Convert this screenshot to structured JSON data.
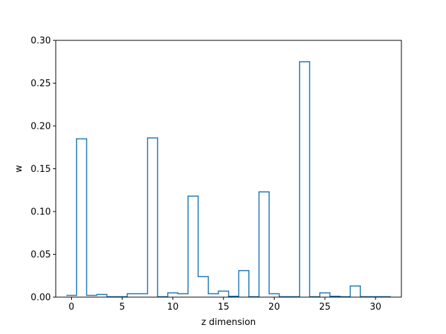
{
  "chart_data": {
    "type": "line",
    "style": "step-histogram",
    "xlabel": "z dimension",
    "ylabel": "w",
    "xlim": [
      -1.55,
      32.55
    ],
    "ylim": [
      0.0,
      0.3
    ],
    "xticks": [
      0,
      5,
      10,
      15,
      20,
      25,
      30
    ],
    "yticks": [
      0.0,
      0.05,
      0.1,
      0.15,
      0.2,
      0.25,
      0.3
    ],
    "xtick_labels": [
      "0",
      "5",
      "10",
      "15",
      "20",
      "25",
      "30"
    ],
    "ytick_labels": [
      "0.00",
      "0.05",
      "0.10",
      "0.15",
      "0.20",
      "0.25",
      "0.30"
    ],
    "grid": false,
    "series": [
      {
        "color": "#1f77b4",
        "x": [
          0,
          1,
          2,
          3,
          4,
          5,
          6,
          7,
          8,
          9,
          10,
          11,
          12,
          13,
          14,
          15,
          16,
          17,
          18,
          19,
          20,
          21,
          22,
          23,
          24,
          25,
          26,
          27,
          28,
          29,
          30,
          31
        ],
        "values": [
          0.002,
          0.185,
          0.002,
          0.003,
          0.0005,
          0.0005,
          0.004,
          0.004,
          0.186,
          0.0005,
          0.005,
          0.004,
          0.118,
          0.024,
          0.004,
          0.007,
          0.001,
          0.031,
          0.0005,
          0.123,
          0.004,
          0.0005,
          0.0005,
          0.275,
          0.0005,
          0.005,
          0.001,
          0.0005,
          0.013,
          0.0005,
          0.0005,
          0.0005
        ]
      }
    ]
  }
}
